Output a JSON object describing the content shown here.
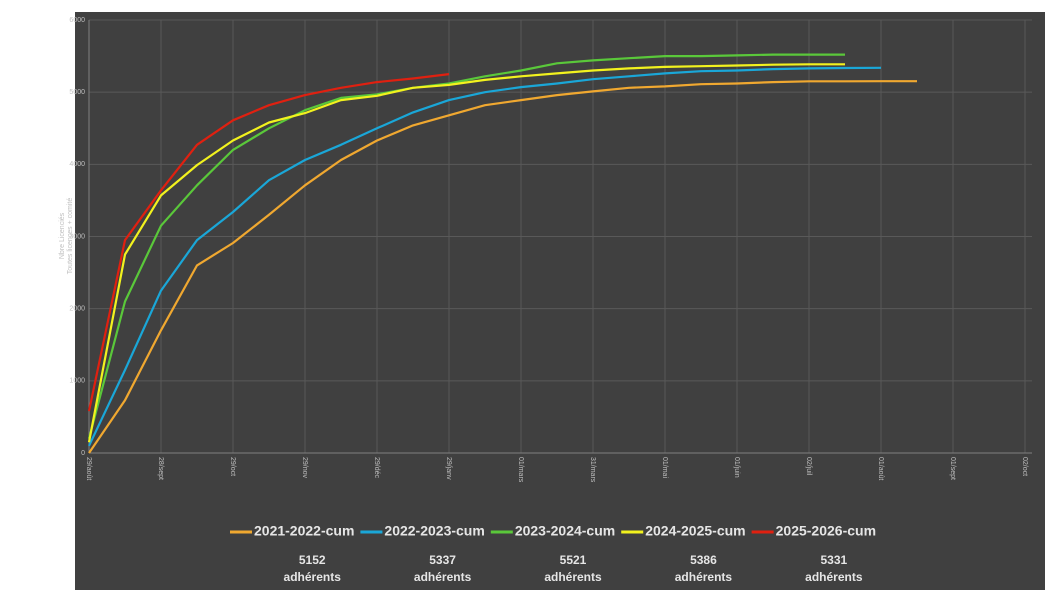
{
  "chart_data": {
    "type": "line",
    "ylabel": "Nbre Licenciés",
    "ylabel2": "Toutes licences + comité",
    "categories": [
      "29/août",
      null,
      "28/sept",
      null,
      "29/oct",
      null,
      "29/nov",
      null,
      "29/déc",
      null,
      "29/janv",
      null,
      "01/mars",
      null,
      "31/mars",
      null,
      "01/mai",
      null,
      "01/juin",
      null,
      "02/juil",
      null,
      "01/août",
      null,
      "01/sept",
      null,
      "02/oct"
    ],
    "series": [
      {
        "name": "2021-2022-cum",
        "color": "#f0a830",
        "values": [
          0,
          730,
          1700,
          2600,
          2910,
          3300,
          3710,
          4060,
          4330,
          4540,
          4680,
          4820,
          4890,
          4960,
          5010,
          5060,
          5080,
          5110,
          5120,
          5140,
          5150,
          5150,
          5152,
          5152,
          null,
          null,
          null
        ]
      },
      {
        "name": "2022-2023-cum",
        "color": "#1aa7d8",
        "values": [
          100,
          1150,
          2250,
          2950,
          3340,
          3780,
          4060,
          4270,
          4500,
          4720,
          4890,
          5000,
          5070,
          5120,
          5180,
          5220,
          5260,
          5290,
          5300,
          5320,
          5330,
          5335,
          5337,
          null,
          null,
          null,
          null
        ]
      },
      {
        "name": "2023-2024-cum",
        "color": "#5ac83a",
        "values": [
          200,
          2100,
          3150,
          3710,
          4200,
          4500,
          4750,
          4920,
          4970,
          5060,
          5120,
          5220,
          5300,
          5400,
          5440,
          5470,
          5500,
          5500,
          5510,
          5520,
          5520,
          5521,
          null,
          null,
          null,
          null,
          null
        ]
      },
      {
        "name": "2024-2025-cum",
        "color": "#f2f21e",
        "values": [
          150,
          2750,
          3570,
          3990,
          4330,
          4580,
          4710,
          4890,
          4950,
          5060,
          5100,
          5170,
          5220,
          5260,
          5300,
          5330,
          5350,
          5360,
          5370,
          5380,
          5386,
          5386,
          null,
          null,
          null,
          null,
          null
        ]
      },
      {
        "name": "2025-2026-cum",
        "color": "#e02010",
        "values": [
          580,
          2950,
          3640,
          4270,
          4610,
          4820,
          4960,
          5060,
          5140,
          5190,
          5250,
          null,
          null,
          null,
          null,
          null,
          null,
          null,
          null,
          null,
          null,
          null,
          null,
          null,
          null,
          null,
          null
        ]
      }
    ],
    "totals": [
      5152,
      5337,
      5521,
      5386,
      5331
    ],
    "totals_label": "adhérents",
    "ylim": [
      0,
      6000
    ],
    "yticks": [
      0,
      1000,
      2000,
      3000,
      4000,
      5000,
      6000
    ],
    "grid": true
  }
}
